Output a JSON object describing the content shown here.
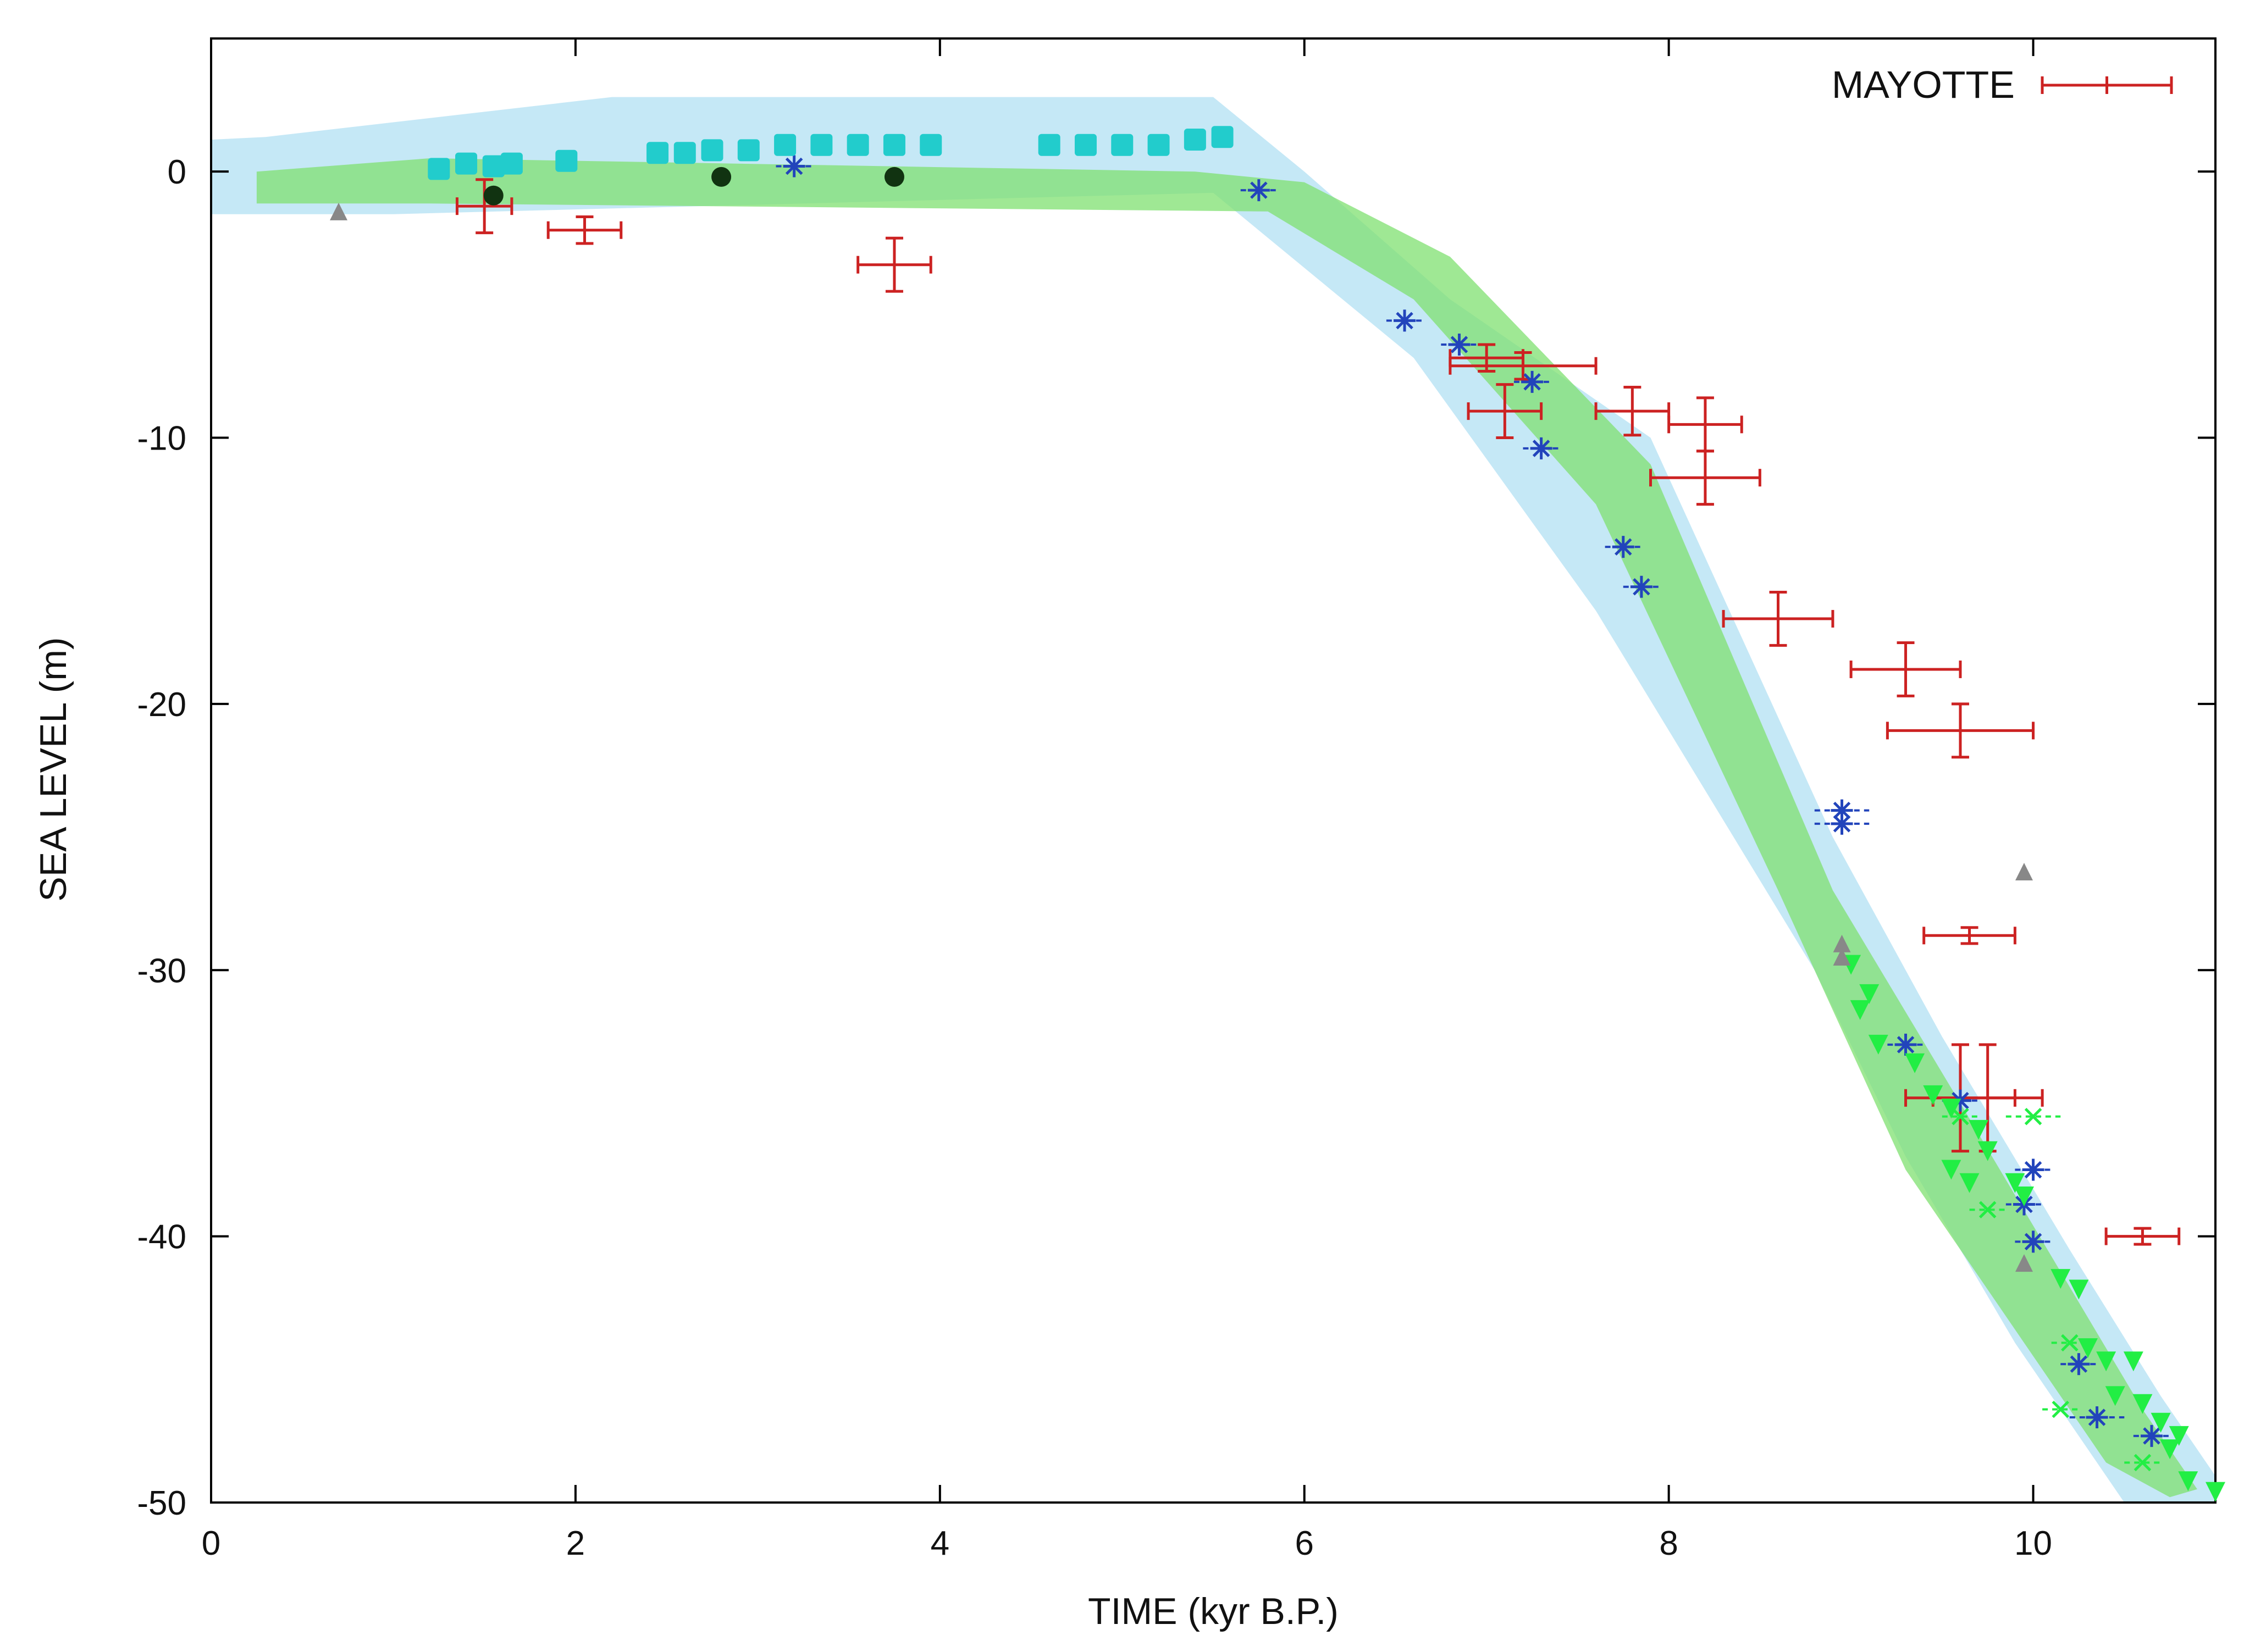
{
  "chart_data": {
    "type": "scatter",
    "title": "",
    "xlabel": "TIME (kyr B.P.)",
    "ylabel": "SEA LEVEL (m)",
    "xlim": [
      0,
      11
    ],
    "ylim": [
      -50,
      5
    ],
    "xticks": [
      0,
      2,
      4,
      6,
      8,
      10
    ],
    "yticks": [
      0,
      -10,
      -20,
      -30,
      -40,
      -50
    ],
    "grid": false,
    "legend": {
      "position": "top-right",
      "entries": [
        "MAYOTTE"
      ]
    },
    "colors": {
      "mayotte": "#cc2222",
      "blue_asterisk": "#2244bb",
      "cyan": "#22cccc",
      "green": "#22ee44",
      "gray": "#888888",
      "black_dot": "#113311",
      "band_light": "#9fd9f0",
      "band_green": "#7fe070"
    },
    "bands": [
      {
        "name": "light blue envelope",
        "x": [
          0,
          0.3,
          2.2,
          5.5,
          6.0,
          6.8,
          7.9,
          8.9,
          9.5,
          10.2,
          10.7,
          11.0,
          11.0,
          10.5,
          9.9,
          9.3,
          8.8,
          7.6,
          6.6,
          5.5,
          1.0,
          0
        ],
        "y": [
          1.2,
          1.3,
          2.8,
          2.8,
          0.0,
          -4.8,
          -10.0,
          -25.0,
          -32.5,
          -40.5,
          -46.0,
          -49.0,
          -50.0,
          -50.0,
          -44.0,
          -37.0,
          -30.0,
          -16.5,
          -7.0,
          -0.8,
          -1.6,
          -1.6
        ]
      },
      {
        "name": "green band",
        "x": [
          0.25,
          1.2,
          5.4,
          6.0,
          6.8,
          7.9,
          8.9,
          9.6,
          10.6,
          10.9,
          10.75,
          10.4,
          9.3,
          8.6,
          7.6,
          6.6,
          5.8,
          1.2,
          0.25
        ],
        "y": [
          0.0,
          0.5,
          0.0,
          -0.4,
          -3.2,
          -11.0,
          -27.0,
          -35.0,
          -46.5,
          -49.5,
          -49.8,
          -48.5,
          -37.5,
          -27.0,
          -12.5,
          -4.8,
          -1.5,
          -1.2,
          -1.2
        ]
      }
    ],
    "series": [
      {
        "name": "MAYOTTE",
        "marker": "errorbar",
        "points": [
          {
            "x": 1.5,
            "y": -1.3,
            "xerr": 0.15,
            "yerr": 1.0
          },
          {
            "x": 2.05,
            "y": -2.2,
            "xerr": 0.2,
            "yerr": 0.5
          },
          {
            "x": 3.75,
            "y": -3.5,
            "xerr": 0.2,
            "yerr": 1.0
          },
          {
            "x": 7.0,
            "y": -7.0,
            "xerr": 0.2,
            "yerr": 0.5
          },
          {
            "x": 7.2,
            "y": -7.3,
            "xerr": 0.4,
            "yerr": 0.5
          },
          {
            "x": 7.1,
            "y": -9.0,
            "xerr": 0.2,
            "yerr": 1.0
          },
          {
            "x": 7.8,
            "y": -9.0,
            "xerr": 0.2,
            "yerr": 0.9
          },
          {
            "x": 8.2,
            "y": -9.5,
            "xerr": 0.2,
            "yerr": 1.0
          },
          {
            "x": 8.2,
            "y": -11.5,
            "xerr": 0.3,
            "yerr": 1.0
          },
          {
            "x": 8.6,
            "y": -16.8,
            "xerr": 0.3,
            "yerr": 1.0
          },
          {
            "x": 9.3,
            "y": -18.7,
            "xerr": 0.3,
            "yerr": 1.0
          },
          {
            "x": 9.6,
            "y": -21.0,
            "xerr": 0.4,
            "yerr": 1.0
          },
          {
            "x": 9.65,
            "y": -28.7,
            "xerr": 0.25,
            "yerr": 0.3
          },
          {
            "x": 9.6,
            "y": -34.8,
            "xerr": 0.3,
            "yerr": 2.0
          },
          {
            "x": 9.75,
            "y": -34.8,
            "xerr": 0.3,
            "yerr": 2.0
          },
          {
            "x": 10.6,
            "y": -40.0,
            "xerr": 0.2,
            "yerr": 0.3
          }
        ]
      },
      {
        "name": "blue asterisks",
        "marker": "asterisk",
        "points": [
          {
            "x": 3.2,
            "y": 0.2,
            "xerr": 0.1
          },
          {
            "x": 5.75,
            "y": -0.7,
            "xerr": 0.1
          },
          {
            "x": 6.55,
            "y": -5.6,
            "xerr": 0.1
          },
          {
            "x": 6.85,
            "y": -6.5,
            "xerr": 0.1
          },
          {
            "x": 7.25,
            "y": -7.9,
            "xerr": 0.1
          },
          {
            "x": 7.3,
            "y": -10.4,
            "xerr": 0.1
          },
          {
            "x": 7.75,
            "y": -14.1,
            "xerr": 0.1
          },
          {
            "x": 7.85,
            "y": -15.6,
            "xerr": 0.1
          },
          {
            "x": 8.95,
            "y": -24.0,
            "xerr": 0.15
          },
          {
            "x": 8.95,
            "y": -24.5,
            "xerr": 0.15
          },
          {
            "x": 9.3,
            "y": -32.8,
            "xerr": 0.1
          },
          {
            "x": 9.6,
            "y": -34.9,
            "xerr": 0.1
          },
          {
            "x": 10.0,
            "y": -37.5,
            "xerr": 0.1
          },
          {
            "x": 9.95,
            "y": -38.8,
            "xerr": 0.1
          },
          {
            "x": 10.0,
            "y": -40.2,
            "xerr": 0.1
          },
          {
            "x": 10.25,
            "y": -44.8,
            "xerr": 0.1
          },
          {
            "x": 10.35,
            "y": -46.8,
            "xerr": 0.15
          },
          {
            "x": 10.65,
            "y": -47.5,
            "xerr": 0.1
          }
        ]
      },
      {
        "name": "cyan squares",
        "marker": "square",
        "points": [
          {
            "x": 1.25,
            "y": 0.1
          },
          {
            "x": 1.4,
            "y": 0.3
          },
          {
            "x": 1.55,
            "y": 0.2
          },
          {
            "x": 1.65,
            "y": 0.3
          },
          {
            "x": 1.95,
            "y": 0.4
          },
          {
            "x": 2.45,
            "y": 0.7
          },
          {
            "x": 2.6,
            "y": 0.7
          },
          {
            "x": 2.75,
            "y": 0.8
          },
          {
            "x": 2.95,
            "y": 0.8
          },
          {
            "x": 3.15,
            "y": 1.0
          },
          {
            "x": 3.35,
            "y": 1.0
          },
          {
            "x": 3.55,
            "y": 1.0
          },
          {
            "x": 3.75,
            "y": 1.0
          },
          {
            "x": 3.95,
            "y": 1.0
          },
          {
            "x": 4.6,
            "y": 1.0
          },
          {
            "x": 4.8,
            "y": 1.0
          },
          {
            "x": 5.0,
            "y": 1.0
          },
          {
            "x": 5.2,
            "y": 1.0
          },
          {
            "x": 5.4,
            "y": 1.2
          },
          {
            "x": 5.55,
            "y": 1.3
          }
        ]
      },
      {
        "name": "green triangles",
        "marker": "triangle-down",
        "points": [
          {
            "x": 9.0,
            "y": -29.8
          },
          {
            "x": 9.1,
            "y": -30.9
          },
          {
            "x": 9.05,
            "y": -31.5
          },
          {
            "x": 9.15,
            "y": -32.8
          },
          {
            "x": 9.35,
            "y": -33.5
          },
          {
            "x": 9.45,
            "y": -34.7
          },
          {
            "x": 9.55,
            "y": -35.2
          },
          {
            "x": 9.7,
            "y": -36.0
          },
          {
            "x": 9.75,
            "y": -36.8
          },
          {
            "x": 9.55,
            "y": -37.5
          },
          {
            "x": 9.65,
            "y": -38.0
          },
          {
            "x": 9.9,
            "y": -38.0
          },
          {
            "x": 9.95,
            "y": -38.5
          },
          {
            "x": 10.15,
            "y": -41.6
          },
          {
            "x": 10.25,
            "y": -42.0
          },
          {
            "x": 10.3,
            "y": -44.2
          },
          {
            "x": 10.4,
            "y": -44.7
          },
          {
            "x": 10.55,
            "y": -44.7
          },
          {
            "x": 10.45,
            "y": -46.0
          },
          {
            "x": 10.6,
            "y": -46.3
          },
          {
            "x": 10.7,
            "y": -47.0
          },
          {
            "x": 10.8,
            "y": -47.5
          },
          {
            "x": 10.75,
            "y": -48.0
          },
          {
            "x": 10.85,
            "y": -49.2
          },
          {
            "x": 11.0,
            "y": -49.6
          }
        ]
      },
      {
        "name": "green crosses",
        "marker": "cross",
        "points": [
          {
            "x": 9.6,
            "y": -35.5,
            "xerr": 0.1
          },
          {
            "x": 10.0,
            "y": -35.5,
            "xerr": 0.15
          },
          {
            "x": 9.75,
            "y": -39.0,
            "xerr": 0.1
          },
          {
            "x": 10.2,
            "y": -44.0,
            "xerr": 0.1
          },
          {
            "x": 10.15,
            "y": -46.5,
            "xerr": 0.1
          },
          {
            "x": 10.6,
            "y": -48.5,
            "xerr": 0.1
          }
        ]
      },
      {
        "name": "gray triangles",
        "marker": "triangle-up",
        "points": [
          {
            "x": 0.7,
            "y": -1.5
          },
          {
            "x": 8.95,
            "y": -29.0
          },
          {
            "x": 8.95,
            "y": -29.5
          },
          {
            "x": 9.95,
            "y": -26.3
          },
          {
            "x": 9.95,
            "y": -41.0
          }
        ]
      },
      {
        "name": "black dots",
        "marker": "circle",
        "points": [
          {
            "x": 1.55,
            "y": -0.9
          },
          {
            "x": 2.8,
            "y": -0.2
          },
          {
            "x": 3.75,
            "y": -0.2
          }
        ]
      }
    ]
  }
}
